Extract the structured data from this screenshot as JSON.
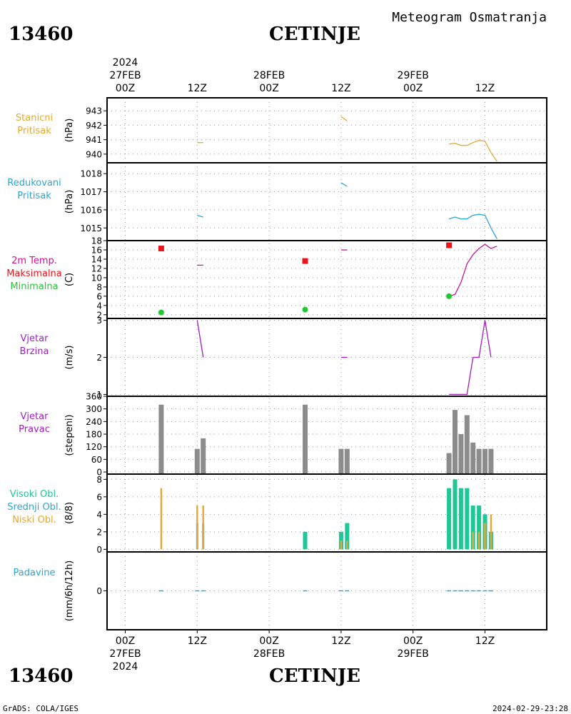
{
  "header": {
    "station_id": "13460",
    "station_name": "CETINJE",
    "title": "Meteogram Osmatranja"
  },
  "footer": {
    "station_id": "13460",
    "station_name": "CETINJE",
    "credit": "GrADS: COLA/IGES",
    "timestamp": "2024-02-29-23:28"
  },
  "top_axis": {
    "year": "2024",
    "labels": [
      {
        "hour": "00Z",
        "date": "27FEB",
        "t": 0
      },
      {
        "hour": "12Z",
        "t": 12
      },
      {
        "hour": "00Z",
        "date": "28FEB",
        "t": 24
      },
      {
        "hour": "12Z",
        "t": 36
      },
      {
        "hour": "00Z",
        "date": "29FEB",
        "t": 48
      },
      {
        "hour": "12Z",
        "t": 60
      }
    ]
  },
  "bottom_axis": {
    "year": "2024",
    "labels": [
      {
        "hour": "00Z",
        "date": "27FEB",
        "t": 0
      },
      {
        "hour": "12Z",
        "t": 12
      },
      {
        "hour": "00Z",
        "date": "28FEB",
        "t": 24
      },
      {
        "hour": "12Z",
        "t": 36
      },
      {
        "hour": "00Z",
        "date": "29FEB",
        "t": 48
      },
      {
        "hour": "12Z",
        "t": 60
      }
    ]
  },
  "colors": {
    "station_pressure": "#e6a832",
    "reduced_pressure": "#2aa6d4",
    "temperature": "#c8168c",
    "tmax": "#e8161a",
    "tmin": "#22c832",
    "wind": "#a01ebe",
    "wind_dir_bar": "#8c8c8c",
    "high_cloud": "#1ec896",
    "mid_cloud": "#2aa6d4",
    "low_cloud": "#e6a832",
    "precip": "#2aa6d4",
    "grid": "#999999"
  },
  "chart_data": [
    {
      "type": "line",
      "id": "station-pressure",
      "labels": [
        "Stanicni",
        "Pritisak"
      ],
      "ylabel": "(hPa)",
      "yticks": [
        940,
        941,
        942,
        943
      ],
      "ylim": [
        939.4,
        943.9
      ],
      "series": [
        {
          "color_key": "station_pressure",
          "segments": [
            [
              [
                12,
                940.8
              ],
              [
                13,
                940.8
              ]
            ],
            [
              [
                36,
                942.6
              ],
              [
                37,
                942.3
              ]
            ],
            [
              [
                54,
                940.7
              ],
              [
                55,
                940.75
              ],
              [
                56,
                940.6
              ],
              [
                57,
                940.6
              ],
              [
                58,
                940.8
              ],
              [
                59,
                940.95
              ],
              [
                60,
                940.9
              ],
              [
                61,
                940.1
              ],
              [
                62,
                939.5
              ]
            ]
          ]
        }
      ]
    },
    {
      "type": "line",
      "id": "reduced-pressure",
      "labels": [
        "Redukovani",
        "Pritisak"
      ],
      "ylabel": "(hPa)",
      "yticks": [
        1015,
        1016,
        1017,
        1018
      ],
      "ylim": [
        1014.3,
        1018.6
      ],
      "series": [
        {
          "color_key": "reduced_pressure",
          "segments": [
            [
              [
                12,
                1015.7
              ],
              [
                13,
                1015.6
              ]
            ],
            [
              [
                36,
                1017.5
              ],
              [
                37,
                1017.3
              ]
            ],
            [
              [
                54,
                1015.5
              ],
              [
                55,
                1015.6
              ],
              [
                56,
                1015.5
              ],
              [
                57,
                1015.5
              ],
              [
                58,
                1015.7
              ],
              [
                59,
                1015.75
              ],
              [
                60,
                1015.7
              ],
              [
                61,
                1015.0
              ],
              [
                62,
                1014.4
              ]
            ]
          ]
        }
      ]
    },
    {
      "type": "line",
      "id": "temperature",
      "labels": [
        "2m Temp.",
        "Maksimalna",
        "Minimalna"
      ],
      "label_color_keys": [
        "temperature",
        "tmax",
        "tmin"
      ],
      "ylabel": "(C)",
      "yticks": [
        2,
        4,
        6,
        8,
        10,
        12,
        14,
        16,
        18
      ],
      "ylim": [
        1.2,
        18
      ],
      "series": [
        {
          "color_key": "temperature",
          "segments": [
            [
              [
                12,
                12.7
              ],
              [
                13,
                12.7
              ]
            ],
            [
              [
                36,
                16
              ],
              [
                37,
                16
              ]
            ],
            [
              [
                54,
                6
              ],
              [
                55,
                6.4
              ],
              [
                56,
                9
              ],
              [
                57,
                13
              ],
              [
                58,
                15
              ],
              [
                59,
                16.3
              ],
              [
                60,
                17.2
              ],
              [
                61,
                16.3
              ],
              [
                62,
                16.8
              ]
            ]
          ]
        }
      ],
      "max_points": [
        [
          6,
          16.3
        ],
        [
          30,
          13.6
        ],
        [
          54,
          17
        ]
      ],
      "min_points": [
        [
          6,
          2.5
        ],
        [
          30,
          3.1
        ],
        [
          54,
          6
        ]
      ]
    },
    {
      "type": "line",
      "id": "wind-speed",
      "labels": [
        "Vjetar",
        "Brzina"
      ],
      "ylabel": "(m/s)",
      "yticks": [
        1,
        2,
        3
      ],
      "ylim": [
        0.95,
        3.05
      ],
      "series": [
        {
          "color_key": "wind",
          "segments": [
            [
              [
                12,
                3
              ],
              [
                13,
                2
              ]
            ],
            [
              [
                36,
                2
              ],
              [
                37,
                2
              ]
            ],
            [
              [
                54,
                1
              ],
              [
                55,
                1
              ],
              [
                56,
                1
              ],
              [
                57,
                1
              ],
              [
                58,
                2
              ],
              [
                59,
                2
              ],
              [
                60,
                3
              ],
              [
                61,
                2
              ]
            ]
          ]
        }
      ]
    },
    {
      "type": "bar",
      "id": "wind-direction",
      "labels": [
        "Vjetar",
        "Pravac"
      ],
      "ylabel": "(stepeni)",
      "yticks": [
        0,
        60,
        120,
        180,
        240,
        300,
        360
      ],
      "ylim": [
        -10,
        360
      ],
      "bars": [
        [
          6,
          320
        ],
        [
          12,
          110
        ],
        [
          13,
          160
        ],
        [
          30,
          320
        ],
        [
          36,
          110
        ],
        [
          37,
          110
        ],
        [
          54,
          90
        ],
        [
          55,
          295
        ],
        [
          56,
          180
        ],
        [
          57,
          270
        ],
        [
          58,
          140
        ],
        [
          59,
          110
        ],
        [
          60,
          110
        ],
        [
          61,
          110
        ]
      ]
    },
    {
      "type": "bar",
      "id": "clouds",
      "labels": [
        "Visoki Obl.",
        "Srednji Obl.",
        "Niski Obl."
      ],
      "label_color_keys": [
        "high_cloud",
        "mid_cloud",
        "low_cloud"
      ],
      "ylabel": "(8/8)",
      "yticks": [
        0,
        2,
        4,
        6,
        8
      ],
      "ylim": [
        -0.3,
        8.6
      ],
      "high": [
        [
          30,
          2
        ],
        [
          36,
          2
        ],
        [
          37,
          3
        ],
        [
          54,
          7
        ],
        [
          55,
          8
        ],
        [
          56,
          7
        ],
        [
          57,
          7
        ],
        [
          58,
          5
        ],
        [
          59,
          5
        ],
        [
          60,
          4
        ],
        [
          61,
          2
        ]
      ],
      "mid": [
        [
          12,
          3
        ],
        [
          13,
          3
        ],
        [
          37,
          1
        ],
        [
          61,
          1
        ]
      ],
      "low": [
        [
          6,
          7
        ],
        [
          12,
          5
        ],
        [
          13,
          5
        ],
        [
          36,
          1
        ],
        [
          37,
          1
        ],
        [
          58,
          2
        ],
        [
          59,
          2
        ],
        [
          60,
          3
        ],
        [
          61,
          4
        ]
      ]
    },
    {
      "type": "bar",
      "id": "precipitation",
      "labels": [
        "Padavine"
      ],
      "ylabel": "(mm/6h/12h)",
      "yticks": [
        0
      ],
      "ylim": [
        -0.5,
        0.5
      ],
      "bars": [
        [
          6,
          0
        ],
        [
          12,
          0
        ],
        [
          13,
          0
        ],
        [
          30,
          0
        ],
        [
          36,
          0
        ],
        [
          37,
          0
        ],
        [
          54,
          0
        ],
        [
          55,
          0
        ],
        [
          56,
          0
        ],
        [
          57,
          0
        ],
        [
          58,
          0
        ],
        [
          59,
          0
        ],
        [
          60,
          0
        ],
        [
          61,
          0
        ]
      ]
    }
  ]
}
